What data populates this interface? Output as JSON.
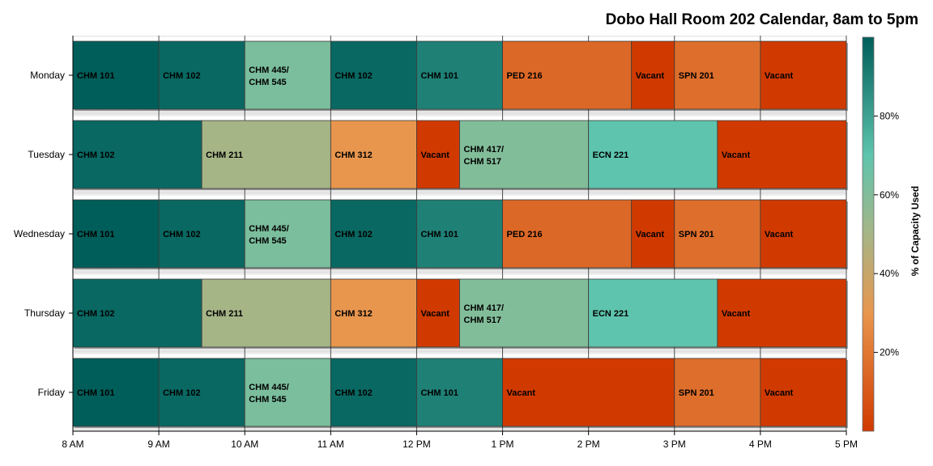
{
  "chart_data": {
    "type": "bar",
    "orientation": "horizontal-timeline",
    "title": "Dobo Hall Room 202 Calendar, 8am to 5pm",
    "x_ticks": [
      "8 AM",
      "9 AM",
      "10 AM",
      "11 AM",
      "12 PM",
      "1 PM",
      "2 PM",
      "3 PM",
      "4 PM",
      "5 PM"
    ],
    "xlim": [
      "8:00",
      "17:00"
    ],
    "categories": [
      "Monday",
      "Tuesday",
      "Wednesday",
      "Thursday",
      "Friday"
    ],
    "color_scale": {
      "title": "% of Capacity Used",
      "ticks": [
        "20%",
        "40%",
        "60%",
        "80%"
      ],
      "range": [
        0,
        100
      ],
      "stops": [
        {
          "value": 0,
          "color": "#d03a00"
        },
        {
          "value": 30,
          "color": "#e8964e"
        },
        {
          "value": 50,
          "color": "#a6b586"
        },
        {
          "value": 70,
          "color": "#5ec4ad"
        },
        {
          "value": 100,
          "color": "#005e5a"
        }
      ]
    },
    "schedule": [
      {
        "day": "Monday",
        "events": [
          {
            "label": "CHM 101",
            "start": "8:00",
            "end": "9:00",
            "capacity": 100
          },
          {
            "label": "CHM 102",
            "start": "9:00",
            "end": "10:00",
            "capacity": 97
          },
          {
            "label": "CHM 445/\nCHM 545",
            "start": "10:00",
            "end": "11:00",
            "capacity": 62
          },
          {
            "label": "CHM 102",
            "start": "11:00",
            "end": "12:00",
            "capacity": 97
          },
          {
            "label": "CHM 101",
            "start": "12:00",
            "end": "13:00",
            "capacity": 90
          },
          {
            "label": "PED 216",
            "start": "13:00",
            "end": "14:30",
            "capacity": 15
          },
          {
            "label": "Vacant",
            "start": "14:30",
            "end": "15:00",
            "capacity": 0
          },
          {
            "label": "SPN 201",
            "start": "15:00",
            "end": "16:00",
            "capacity": 17
          },
          {
            "label": "Vacant",
            "start": "16:00",
            "end": "17:00",
            "capacity": 0
          }
        ]
      },
      {
        "day": "Tuesday",
        "events": [
          {
            "label": "CHM 102",
            "start": "8:00",
            "end": "9:30",
            "capacity": 97
          },
          {
            "label": "CHM 211",
            "start": "9:30",
            "end": "11:00",
            "capacity": 50
          },
          {
            "label": "CHM 312",
            "start": "11:00",
            "end": "12:00",
            "capacity": 30
          },
          {
            "label": "Vacant",
            "start": "12:00",
            "end": "12:30",
            "capacity": 0
          },
          {
            "label": "CHM 417/\nCHM 517",
            "start": "12:30",
            "end": "14:00",
            "capacity": 60
          },
          {
            "label": "ECN 221",
            "start": "14:00",
            "end": "15:30",
            "capacity": 70
          },
          {
            "label": "Vacant",
            "start": "15:30",
            "end": "17:00",
            "capacity": 0
          }
        ]
      },
      {
        "day": "Wednesday",
        "events": [
          {
            "label": "CHM 101",
            "start": "8:00",
            "end": "9:00",
            "capacity": 100
          },
          {
            "label": "CHM 102",
            "start": "9:00",
            "end": "10:00",
            "capacity": 97
          },
          {
            "label": "CHM 445/\nCHM 545",
            "start": "10:00",
            "end": "11:00",
            "capacity": 62
          },
          {
            "label": "CHM 102",
            "start": "11:00",
            "end": "12:00",
            "capacity": 97
          },
          {
            "label": "CHM 101",
            "start": "12:00",
            "end": "13:00",
            "capacity": 90
          },
          {
            "label": "PED 216",
            "start": "13:00",
            "end": "14:30",
            "capacity": 15
          },
          {
            "label": "Vacant",
            "start": "14:30",
            "end": "15:00",
            "capacity": 0
          },
          {
            "label": "SPN 201",
            "start": "15:00",
            "end": "16:00",
            "capacity": 17
          },
          {
            "label": "Vacant",
            "start": "16:00",
            "end": "17:00",
            "capacity": 0
          }
        ]
      },
      {
        "day": "Thursday",
        "events": [
          {
            "label": "CHM 102",
            "start": "8:00",
            "end": "9:30",
            "capacity": 97
          },
          {
            "label": "CHM 211",
            "start": "9:30",
            "end": "11:00",
            "capacity": 50
          },
          {
            "label": "CHM 312",
            "start": "11:00",
            "end": "12:00",
            "capacity": 30
          },
          {
            "label": "Vacant",
            "start": "12:00",
            "end": "12:30",
            "capacity": 0
          },
          {
            "label": "CHM 417/\nCHM 517",
            "start": "12:30",
            "end": "14:00",
            "capacity": 60
          },
          {
            "label": "ECN 221",
            "start": "14:00",
            "end": "15:30",
            "capacity": 70
          },
          {
            "label": "Vacant",
            "start": "15:30",
            "end": "17:00",
            "capacity": 0
          }
        ]
      },
      {
        "day": "Friday",
        "events": [
          {
            "label": "CHM 101",
            "start": "8:00",
            "end": "9:00",
            "capacity": 100
          },
          {
            "label": "CHM 102",
            "start": "9:00",
            "end": "10:00",
            "capacity": 97
          },
          {
            "label": "CHM 445/\nCHM 545",
            "start": "10:00",
            "end": "11:00",
            "capacity": 62
          },
          {
            "label": "CHM 102",
            "start": "11:00",
            "end": "12:00",
            "capacity": 97
          },
          {
            "label": "CHM 101",
            "start": "12:00",
            "end": "13:00",
            "capacity": 90
          },
          {
            "label": "Vacant",
            "start": "13:00",
            "end": "15:00",
            "capacity": 0
          },
          {
            "label": "SPN 201",
            "start": "15:00",
            "end": "16:00",
            "capacity": 17
          },
          {
            "label": "Vacant",
            "start": "16:00",
            "end": "17:00",
            "capacity": 0
          }
        ]
      }
    ]
  }
}
